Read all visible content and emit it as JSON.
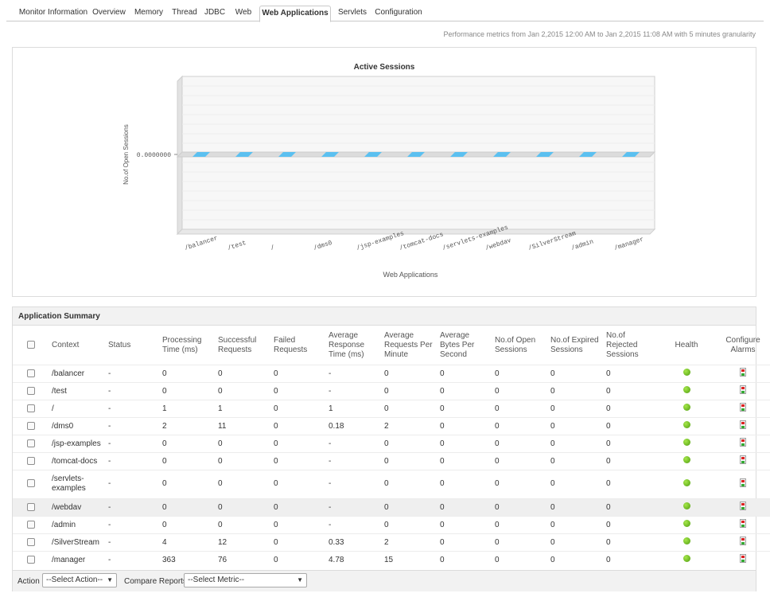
{
  "tabs": [
    {
      "label": "Monitor Information",
      "active": false
    },
    {
      "label": "Overview",
      "active": false
    },
    {
      "label": "Memory",
      "active": false
    },
    {
      "label": "Thread",
      "active": false
    },
    {
      "label": "JDBC",
      "active": false
    },
    {
      "label": "Web",
      "active": false
    },
    {
      "label": "Web Applications",
      "active": true
    },
    {
      "label": "Servlets",
      "active": false
    },
    {
      "label": "Configuration",
      "active": false
    }
  ],
  "period_text": "Performance metrics from Jan 2,2015 12:00 AM to Jan 2,2015 11:08 AM with 5 minutes granularity",
  "chart_data": {
    "type": "bar",
    "title": "Active Sessions",
    "xlabel": "Web Applications",
    "ylabel": "No.of Open Sessions",
    "y_tick_label": "0.0000000",
    "categories": [
      "/balancer",
      "/test",
      "/",
      "/dms0",
      "/jsp-examples",
      "/tomcat-docs",
      "/servlets-examples",
      "/webdav",
      "/SilverStream",
      "/admin",
      "/manager"
    ],
    "values": [
      0,
      0,
      0,
      0,
      0,
      0,
      0,
      0,
      0,
      0,
      0
    ],
    "bar_color": "#5bc0f0",
    "three_d": true,
    "grid": true
  },
  "summary": {
    "title": "Application Summary",
    "columns": [
      "Context",
      "Status",
      "Processing Time (ms)",
      "Successful Requests",
      "Failed Requests",
      "Average Response Time (ms)",
      "Average Requests Per Minute",
      "Average Bytes Per Second",
      "No.of Open Sessions",
      "No.of Expired Sessions",
      "No.of Rejected Sessions",
      "Health",
      "Configure Alarms"
    ],
    "rows": [
      {
        "context": "/balancer",
        "status": "-",
        "proc": "0",
        "succ": "0",
        "failed": "0",
        "avg_resp": "-",
        "avg_req": "0",
        "avg_bytes": "0",
        "open": "0",
        "expired": "0",
        "rejected": "0",
        "health": "clear"
      },
      {
        "context": "/test",
        "status": "-",
        "proc": "0",
        "succ": "0",
        "failed": "0",
        "avg_resp": "-",
        "avg_req": "0",
        "avg_bytes": "0",
        "open": "0",
        "expired": "0",
        "rejected": "0",
        "health": "clear"
      },
      {
        "context": "/",
        "status": "-",
        "proc": "1",
        "succ": "1",
        "failed": "0",
        "avg_resp": "1",
        "avg_req": "0",
        "avg_bytes": "0",
        "open": "0",
        "expired": "0",
        "rejected": "0",
        "health": "clear"
      },
      {
        "context": "/dms0",
        "status": "-",
        "proc": "2",
        "succ": "11",
        "failed": "0",
        "avg_resp": "0.18",
        "avg_req": "2",
        "avg_bytes": "0",
        "open": "0",
        "expired": "0",
        "rejected": "0",
        "health": "clear"
      },
      {
        "context": "/jsp-examples",
        "status": "-",
        "proc": "0",
        "succ": "0",
        "failed": "0",
        "avg_resp": "-",
        "avg_req": "0",
        "avg_bytes": "0",
        "open": "0",
        "expired": "0",
        "rejected": "0",
        "health": "clear"
      },
      {
        "context": "/tomcat-docs",
        "status": "-",
        "proc": "0",
        "succ": "0",
        "failed": "0",
        "avg_resp": "-",
        "avg_req": "0",
        "avg_bytes": "0",
        "open": "0",
        "expired": "0",
        "rejected": "0",
        "health": "clear"
      },
      {
        "context": "/servlets-examples",
        "status": "-",
        "proc": "0",
        "succ": "0",
        "failed": "0",
        "avg_resp": "-",
        "avg_req": "0",
        "avg_bytes": "0",
        "open": "0",
        "expired": "0",
        "rejected": "0",
        "health": "clear"
      },
      {
        "context": "/webdav",
        "status": "-",
        "proc": "0",
        "succ": "0",
        "failed": "0",
        "avg_resp": "-",
        "avg_req": "0",
        "avg_bytes": "0",
        "open": "0",
        "expired": "0",
        "rejected": "0",
        "health": "clear"
      },
      {
        "context": "/admin",
        "status": "-",
        "proc": "0",
        "succ": "0",
        "failed": "0",
        "avg_resp": "-",
        "avg_req": "0",
        "avg_bytes": "0",
        "open": "0",
        "expired": "0",
        "rejected": "0",
        "health": "clear"
      },
      {
        "context": "/SilverStream",
        "status": "-",
        "proc": "4",
        "succ": "12",
        "failed": "0",
        "avg_resp": "0.33",
        "avg_req": "2",
        "avg_bytes": "0",
        "open": "0",
        "expired": "0",
        "rejected": "0",
        "health": "clear"
      },
      {
        "context": "/manager",
        "status": "-",
        "proc": "363",
        "succ": "76",
        "failed": "0",
        "avg_resp": "4.78",
        "avg_req": "15",
        "avg_bytes": "0",
        "open": "0",
        "expired": "0",
        "rejected": "0",
        "health": "clear"
      }
    ]
  },
  "footer": {
    "action_label": "Action",
    "action_select": "--Select Action--",
    "compare_label": "Compare Reports",
    "metric_select": "--Select Metric--"
  },
  "colors": {
    "accent": "#5bc0f0",
    "health_ok": "#6cc21f"
  }
}
